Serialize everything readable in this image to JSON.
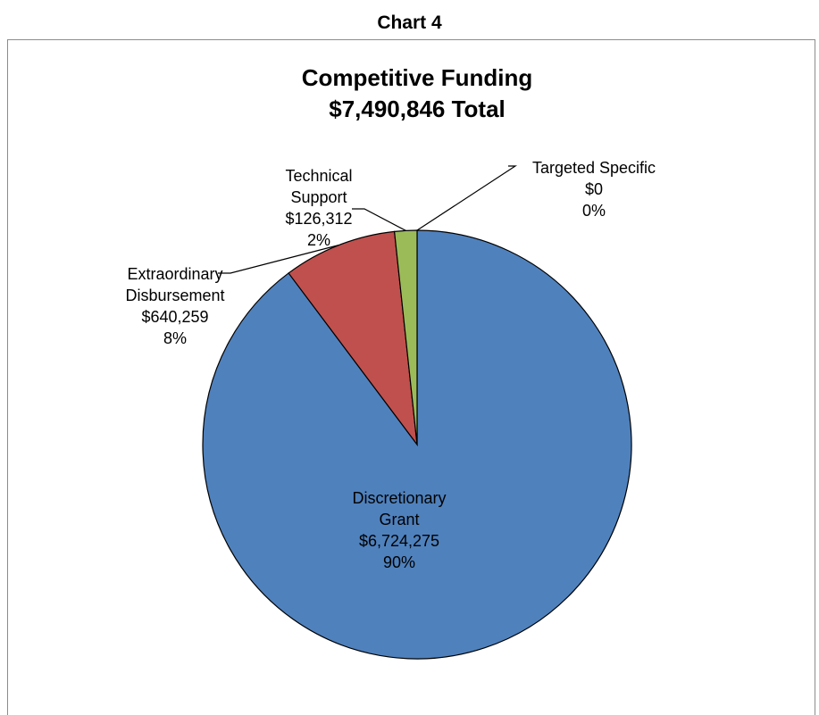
{
  "page": {
    "heading": "Chart 4"
  },
  "chart_data": {
    "type": "pie",
    "title": "Competitive Funding",
    "subtitle": "$7,490,846 Total",
    "slices": [
      {
        "name": "Discretionary Grant",
        "label_lines": [
          "Discretionary",
          "Grant"
        ],
        "value": 6724275,
        "value_label": "$6,724,275",
        "percent_label": "90%",
        "color": "#4F81BD"
      },
      {
        "name": "Extraordinary Disbursement",
        "label_lines": [
          "Extraordinary",
          "Disbursement"
        ],
        "value": 640259,
        "value_label": "$640,259",
        "percent_label": "8%",
        "color": "#C0504D"
      },
      {
        "name": "Technical Support",
        "label_lines": [
          "Technical",
          "Support"
        ],
        "value": 126312,
        "value_label": "$126,312",
        "percent_label": "2%",
        "color": "#9BBB59"
      },
      {
        "name": "Targeted Specific",
        "label_lines": [
          "Targeted Specific"
        ],
        "value": 0,
        "value_label": "$0",
        "percent_label": "0%",
        "color": "#8064A2"
      }
    ],
    "direction": "clockwise",
    "start": "top",
    "legend": "none"
  }
}
